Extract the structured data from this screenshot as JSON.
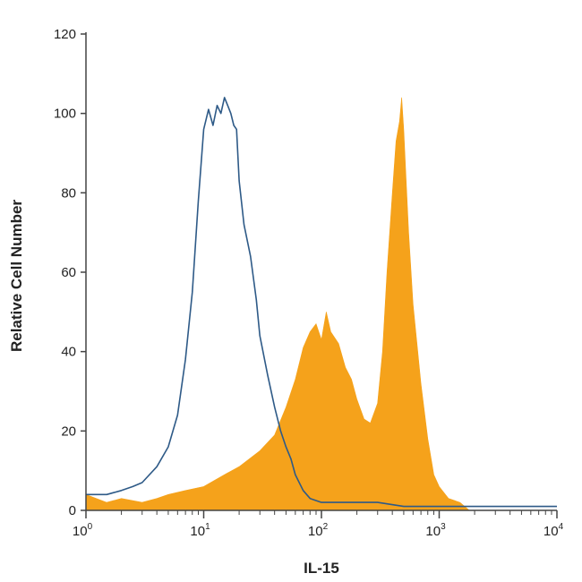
{
  "chart_data": {
    "type": "area",
    "xlabel": "IL-15",
    "ylabel": "Relative Cell Number",
    "xscale": "log",
    "xlim": [
      1,
      10000
    ],
    "ylim": [
      0,
      120
    ],
    "x_ticks": [
      {
        "value": 1,
        "base": "10",
        "exp": "0"
      },
      {
        "value": 10,
        "base": "10",
        "exp": "1"
      },
      {
        "value": 100,
        "base": "10",
        "exp": "2"
      },
      {
        "value": 1000,
        "base": "10",
        "exp": "3"
      },
      {
        "value": 10000,
        "base": "10",
        "exp": "4"
      }
    ],
    "y_ticks": [
      0,
      20,
      40,
      60,
      80,
      100,
      120
    ],
    "grid": false,
    "series": [
      {
        "style": "filled",
        "color": "#f5a21b",
        "x": [
          1,
          1.5,
          2,
          3,
          4,
          5,
          7,
          10,
          15,
          20,
          30,
          40,
          50,
          60,
          70,
          80,
          90,
          100,
          110,
          120,
          140,
          160,
          180,
          200,
          230,
          260,
          300,
          330,
          360,
          400,
          430,
          460,
          480,
          500,
          520,
          550,
          600,
          700,
          800,
          900,
          1000,
          1200,
          1500,
          1800
        ],
        "values": [
          4,
          2,
          3,
          2,
          3,
          4,
          5,
          6,
          9,
          11,
          15,
          19,
          26,
          33,
          41,
          45,
          47,
          43,
          50,
          45,
          42,
          36,
          33,
          28,
          23,
          22,
          27,
          40,
          60,
          80,
          93,
          98,
          104,
          96,
          85,
          70,
          52,
          32,
          18,
          9,
          6,
          3,
          2,
          0
        ]
      },
      {
        "style": "outline",
        "color": "#2e5a87",
        "x": [
          1,
          1.5,
          2,
          2.5,
          3,
          4,
          5,
          6,
          7,
          8,
          9,
          10,
          11,
          12,
          13,
          14,
          15,
          16,
          17,
          18,
          19,
          20,
          22,
          25,
          28,
          30,
          35,
          40,
          45,
          50,
          55,
          60,
          70,
          80,
          100,
          150,
          200,
          300,
          500,
          1000,
          2000,
          5000,
          10000
        ],
        "values": [
          4,
          4,
          5,
          6,
          7,
          11,
          16,
          24,
          38,
          55,
          78,
          96,
          101,
          97,
          102,
          100,
          104,
          102,
          100,
          97,
          96,
          83,
          72,
          64,
          53,
          44,
          34,
          26,
          20,
          16,
          13,
          9,
          5,
          3,
          2,
          2,
          2,
          2,
          1,
          1,
          1,
          1,
          1
        ]
      }
    ]
  }
}
